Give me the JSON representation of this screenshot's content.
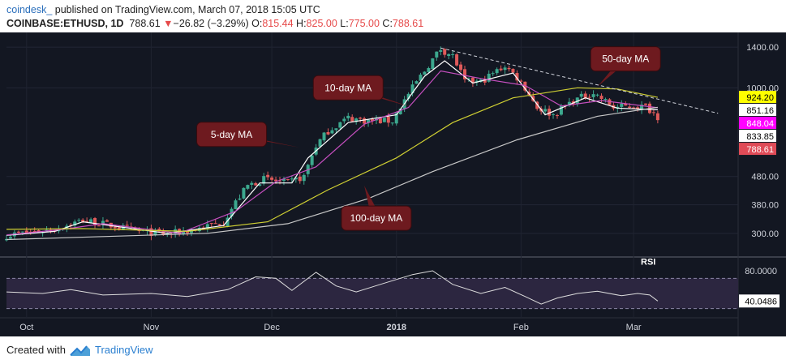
{
  "header": {
    "author": "coindesk_",
    "published": " published on TradingView.com, March 07, 2018 15:05 UTC",
    "symbol": "COINBASE:ETHUSD, 1D",
    "last": "788.61",
    "arrow": "▼",
    "change": "−26.82 (−3.29%)",
    "o_label": "O:",
    "o_val": "815.44",
    "h_label": "H:",
    "h_val": "825.00",
    "l_label": "L:",
    "l_val": "775.00",
    "c_label": "C:",
    "c_val": "788.61"
  },
  "footer": {
    "created_with": "Created with",
    "brand": "TradingView"
  },
  "colors": {
    "background": "#131722",
    "up": "#3ca88e",
    "down": "#e05a5a",
    "ma5": "#ffffff",
    "ma10": "#c64fc0",
    "ma50": "#cfcf33",
    "ma100": "#c8c8c8",
    "callout": "#6e1a1f",
    "rsi_band": "#2c2640",
    "rsi_line": "#dddddd"
  },
  "chart_data": [
    {
      "type": "candlestick",
      "x_type": "date",
      "x_range": [
        "2017-09-26",
        "2018-03-27"
      ],
      "y_scale": "log",
      "y_ticks": [
        300,
        380,
        480,
        1000,
        1400
      ],
      "y_tick_labels": [
        "300.00",
        "380.00",
        "480.00",
        "1000.00",
        "1400.00"
      ],
      "x_tick_labels": [
        {
          "date": "2017-10-01",
          "label": "Oct"
        },
        {
          "date": "2017-11-01",
          "label": "Nov"
        },
        {
          "date": "2017-12-01",
          "label": "Dec"
        },
        {
          "date": "2018-01-01",
          "label": "2018"
        },
        {
          "date": "2018-02-01",
          "label": "Feb"
        },
        {
          "date": "2018-03-01",
          "label": "Mar"
        }
      ],
      "price_labels": [
        {
          "text": "924.20",
          "value": 924.2,
          "bg": "#ffff00",
          "fg": "#000000"
        },
        {
          "text": "851.16",
          "value": 851.16,
          "bg": "#ffffff",
          "fg": "#000000"
        },
        {
          "text": "848.04",
          "value": 848.04,
          "bg": "#ff00ff",
          "fg": "#ffffff"
        },
        {
          "text": "833.85",
          "value": 833.85,
          "bg": "#ffffff",
          "fg": "#000000"
        },
        {
          "text": "788.61",
          "value": 788.61,
          "bg": "#e04b57",
          "fg": "#ffffff"
        }
      ],
      "annotations": [
        {
          "text": "10-day MA",
          "date": "2017-12-20",
          "value": 1000,
          "target_date": "2018-01-05",
          "target_value": 850
        },
        {
          "text": "5-day MA",
          "date": "2017-11-21",
          "value": 680,
          "target_date": "2017-12-08",
          "target_value": 610
        },
        {
          "text": "50-day MA",
          "date": "2018-02-27",
          "value": 1270,
          "target_date": "2018-02-20",
          "target_value": 1010
        },
        {
          "text": "100-day MA",
          "date": "2017-12-27",
          "value": 340,
          "target_date": "2017-12-24",
          "target_value": 445
        }
      ],
      "trendline": [
        {
          "date": "2018-01-12",
          "value": 1390
        },
        {
          "date": "2018-03-22",
          "value": 810
        }
      ],
      "series": [
        {
          "name": "ETHUSD",
          "style": "candles",
          "points": [
            {
              "date": "2017-09-26",
              "value": 295
            },
            {
              "date": "2017-10-01",
              "value": 302
            },
            {
              "date": "2017-10-08",
              "value": 310
            },
            {
              "date": "2017-10-15",
              "value": 335
            },
            {
              "date": "2017-10-22",
              "value": 320
            },
            {
              "date": "2017-10-29",
              "value": 305
            },
            {
              "date": "2017-11-05",
              "value": 298
            },
            {
              "date": "2017-11-12",
              "value": 310
            },
            {
              "date": "2017-11-19",
              "value": 330
            },
            {
              "date": "2017-11-25",
              "value": 445
            },
            {
              "date": "2017-11-29",
              "value": 470
            },
            {
              "date": "2017-12-05",
              "value": 455
            },
            {
              "date": "2017-12-09",
              "value": 480
            },
            {
              "date": "2017-12-12",
              "value": 620
            },
            {
              "date": "2017-12-15",
              "value": 700
            },
            {
              "date": "2017-12-20",
              "value": 780
            },
            {
              "date": "2017-12-25",
              "value": 760
            },
            {
              "date": "2017-12-31",
              "value": 760
            },
            {
              "date": "2018-01-04",
              "value": 950
            },
            {
              "date": "2018-01-08",
              "value": 1150
            },
            {
              "date": "2018-01-12",
              "value": 1380
            },
            {
              "date": "2018-01-15",
              "value": 1300
            },
            {
              "date": "2018-01-18",
              "value": 1050
            },
            {
              "date": "2018-01-22",
              "value": 1050
            },
            {
              "date": "2018-01-28",
              "value": 1200
            },
            {
              "date": "2018-02-01",
              "value": 1050
            },
            {
              "date": "2018-02-05",
              "value": 850
            },
            {
              "date": "2018-02-09",
              "value": 800
            },
            {
              "date": "2018-02-14",
              "value": 900
            },
            {
              "date": "2018-02-19",
              "value": 960
            },
            {
              "date": "2018-02-24",
              "value": 850
            },
            {
              "date": "2018-03-01",
              "value": 860
            },
            {
              "date": "2018-03-04",
              "value": 855
            },
            {
              "date": "2018-03-06",
              "value": 815
            },
            {
              "date": "2018-03-07",
              "value": 788.61
            }
          ]
        },
        {
          "name": "5-day MA",
          "style": "line",
          "color": "#ffffff",
          "points": [
            {
              "date": "2017-09-26",
              "value": 295
            },
            {
              "date": "2017-10-08",
              "value": 305
            },
            {
              "date": "2017-10-15",
              "value": 330
            },
            {
              "date": "2017-11-05",
              "value": 300
            },
            {
              "date": "2017-11-19",
              "value": 320
            },
            {
              "date": "2017-11-28",
              "value": 455
            },
            {
              "date": "2017-12-06",
              "value": 455
            },
            {
              "date": "2017-12-10",
              "value": 560
            },
            {
              "date": "2017-12-20",
              "value": 750
            },
            {
              "date": "2018-01-01",
              "value": 800
            },
            {
              "date": "2018-01-08",
              "value": 1100
            },
            {
              "date": "2018-01-13",
              "value": 1250
            },
            {
              "date": "2018-01-20",
              "value": 1040
            },
            {
              "date": "2018-01-30",
              "value": 1130
            },
            {
              "date": "2018-02-07",
              "value": 800
            },
            {
              "date": "2018-02-17",
              "value": 920
            },
            {
              "date": "2018-02-25",
              "value": 845
            },
            {
              "date": "2018-03-07",
              "value": 833.85
            }
          ]
        },
        {
          "name": "10-day MA",
          "style": "line",
          "color": "#c64fc0",
          "points": [
            {
              "date": "2017-09-26",
              "value": 296
            },
            {
              "date": "2017-10-10",
              "value": 310
            },
            {
              "date": "2017-10-20",
              "value": 325
            },
            {
              "date": "2017-11-08",
              "value": 300
            },
            {
              "date": "2017-11-22",
              "value": 360
            },
            {
              "date": "2017-12-02",
              "value": 460
            },
            {
              "date": "2017-12-12",
              "value": 520
            },
            {
              "date": "2017-12-24",
              "value": 740
            },
            {
              "date": "2018-01-04",
              "value": 850
            },
            {
              "date": "2018-01-12",
              "value": 1150
            },
            {
              "date": "2018-01-22",
              "value": 1080
            },
            {
              "date": "2018-02-02",
              "value": 1020
            },
            {
              "date": "2018-02-11",
              "value": 860
            },
            {
              "date": "2018-02-21",
              "value": 900
            },
            {
              "date": "2018-03-07",
              "value": 848.04
            }
          ]
        },
        {
          "name": "50-day MA",
          "style": "line",
          "color": "#cfcf33",
          "points": [
            {
              "date": "2017-09-26",
              "value": 310
            },
            {
              "date": "2017-10-15",
              "value": 312
            },
            {
              "date": "2017-11-10",
              "value": 305
            },
            {
              "date": "2017-11-30",
              "value": 330
            },
            {
              "date": "2017-12-15",
              "value": 430
            },
            {
              "date": "2018-01-01",
              "value": 560
            },
            {
              "date": "2018-01-15",
              "value": 750
            },
            {
              "date": "2018-01-30",
              "value": 920
            },
            {
              "date": "2018-02-15",
              "value": 1000
            },
            {
              "date": "2018-02-25",
              "value": 990
            },
            {
              "date": "2018-03-07",
              "value": 924.2
            }
          ]
        },
        {
          "name": "100-day MA",
          "style": "line",
          "color": "#c8c8c8",
          "points": [
            {
              "date": "2017-09-26",
              "value": 285
            },
            {
              "date": "2017-10-20",
              "value": 292
            },
            {
              "date": "2017-11-15",
              "value": 300
            },
            {
              "date": "2017-12-05",
              "value": 325
            },
            {
              "date": "2017-12-25",
              "value": 400
            },
            {
              "date": "2018-01-10",
              "value": 500
            },
            {
              "date": "2018-01-31",
              "value": 650
            },
            {
              "date": "2018-02-20",
              "value": 790
            },
            {
              "date": "2018-03-07",
              "value": 851.16
            }
          ]
        }
      ]
    },
    {
      "type": "line",
      "title": "RSI",
      "x_type": "date",
      "x_range": [
        "2017-09-26",
        "2018-03-27"
      ],
      "y_ticks": [
        80,
        40.0486
      ],
      "y_tick_labels": [
        "80.0000",
        "40.0486"
      ],
      "band": [
        30,
        70
      ],
      "series": [
        {
          "name": "RSI",
          "points": [
            {
              "date": "2017-09-26",
              "value": 52
            },
            {
              "date": "2017-10-05",
              "value": 50
            },
            {
              "date": "2017-10-12",
              "value": 55
            },
            {
              "date": "2017-10-20",
              "value": 48
            },
            {
              "date": "2017-11-01",
              "value": 50
            },
            {
              "date": "2017-11-10",
              "value": 46
            },
            {
              "date": "2017-11-20",
              "value": 55
            },
            {
              "date": "2017-11-27",
              "value": 72
            },
            {
              "date": "2017-12-02",
              "value": 70
            },
            {
              "date": "2017-12-06",
              "value": 54
            },
            {
              "date": "2017-12-12",
              "value": 78
            },
            {
              "date": "2017-12-17",
              "value": 60
            },
            {
              "date": "2017-12-22",
              "value": 52
            },
            {
              "date": "2017-12-28",
              "value": 62
            },
            {
              "date": "2018-01-05",
              "value": 75
            },
            {
              "date": "2018-01-10",
              "value": 80
            },
            {
              "date": "2018-01-15",
              "value": 62
            },
            {
              "date": "2018-01-22",
              "value": 50
            },
            {
              "date": "2018-01-28",
              "value": 58
            },
            {
              "date": "2018-02-02",
              "value": 46
            },
            {
              "date": "2018-02-06",
              "value": 36
            },
            {
              "date": "2018-02-10",
              "value": 44
            },
            {
              "date": "2018-02-15",
              "value": 50
            },
            {
              "date": "2018-02-20",
              "value": 53
            },
            {
              "date": "2018-02-26",
              "value": 47
            },
            {
              "date": "2018-03-02",
              "value": 50
            },
            {
              "date": "2018-03-05",
              "value": 48
            },
            {
              "date": "2018-03-07",
              "value": 40.05
            }
          ]
        }
      ]
    }
  ]
}
